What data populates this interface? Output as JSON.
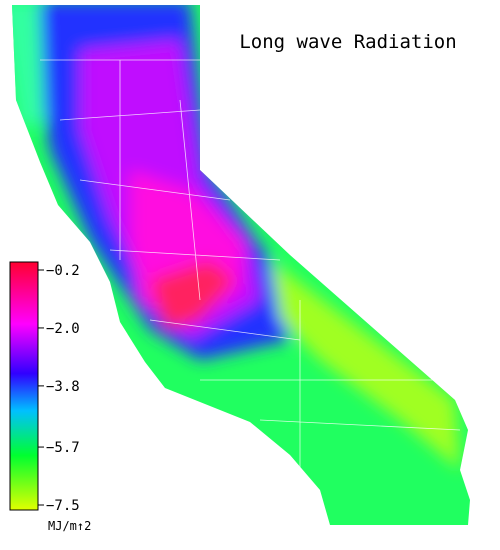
{
  "title": "Long wave Radiation",
  "colorbar": {
    "ylim": [
      -7.5,
      -0.2
    ],
    "ticks": [
      {
        "value": -0.2,
        "label": "−0.2"
      },
      {
        "value": -2.0,
        "label": "−2.0"
      },
      {
        "value": -3.8,
        "label": "−3.8"
      },
      {
        "value": -5.7,
        "label": "−5.7"
      },
      {
        "value": -7.5,
        "label": "−7.5"
      }
    ],
    "unit": "MJ/m↑2"
  }
}
